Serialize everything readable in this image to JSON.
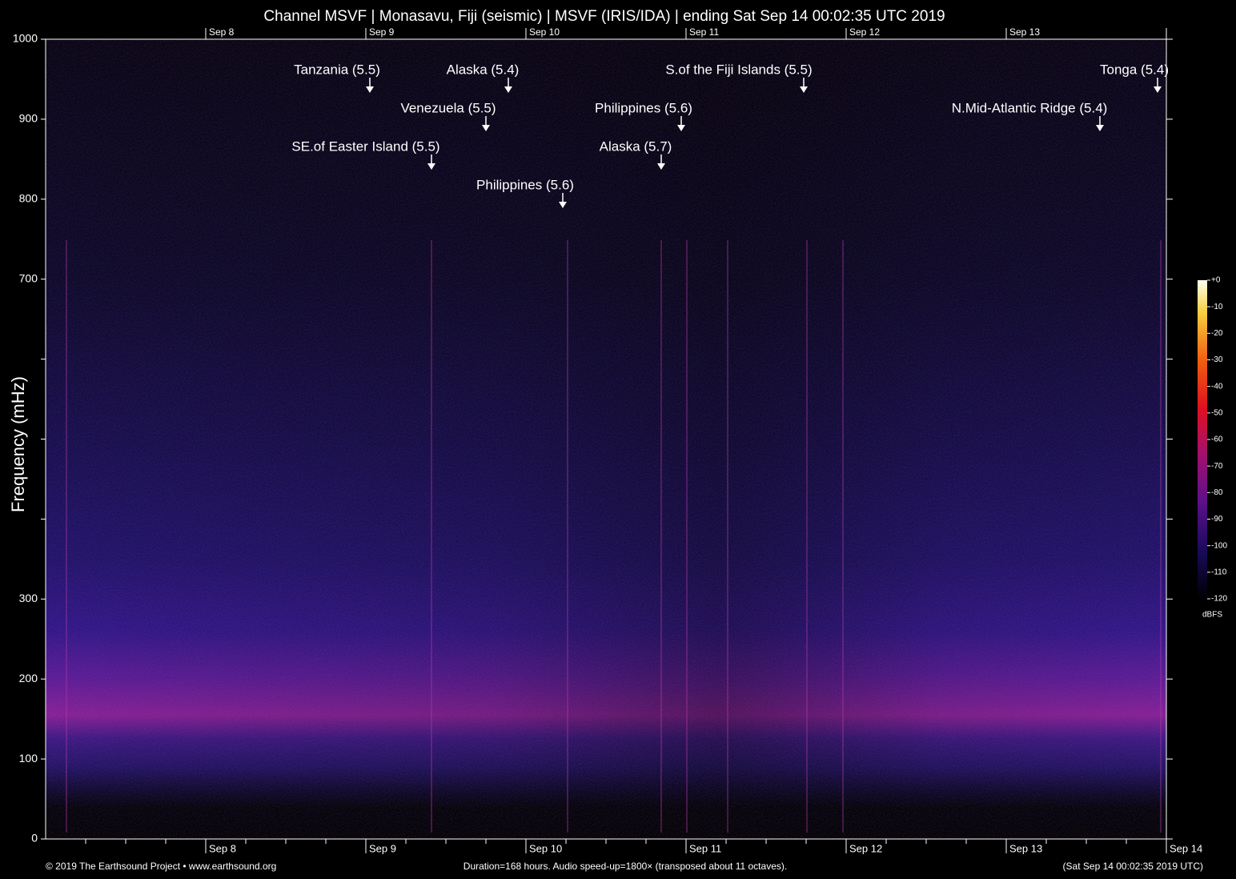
{
  "chart_data": {
    "type": "spectrogram",
    "title": "Channel MSVF | Monasavu, Fiji (seismic) | MSVF (IRIS/IDA) | ending Sat Sep 14 00:02:35 UTC 2019",
    "y_label": "Frequency (mHz)",
    "ylim": [
      0,
      1000
    ],
    "yticks": [
      0,
      100,
      200,
      300,
      {
        "value": 400,
        "label": null
      },
      {
        "value": 500,
        "label": null
      },
      {
        "value": 600,
        "label": null
      },
      700,
      800,
      900,
      1000
    ],
    "xticks": [
      "Sep 8",
      "Sep 9",
      "Sep 10",
      "Sep 11",
      "Sep 12",
      "Sep 13",
      "Sep 14"
    ],
    "annotations": [
      "Tanzania (5.5)",
      "Alaska (5.4)",
      "Venezuela (5.5)",
      "SE.of Easter Island (5.5)",
      "Philippines (5.6)",
      "Philippines (5.6)",
      "Alaska (5.7)",
      "S.of the Fiji Islands (5.5)",
      "N.Mid-Atlantic Ridge (5.4)",
      "Tonga (5.4)"
    ],
    "colorbar": {
      "label": "dBFS",
      "clim": [
        -120,
        0
      ],
      "ticks": [
        {
          "value": 0,
          "label": "+0"
        },
        -10,
        -20,
        -30,
        -40,
        -50,
        -60,
        -70,
        -80,
        -90,
        -100,
        -110,
        -120
      ]
    },
    "footer": {
      "left": "© 2019 The Earthsound Project • www.earthsound.org",
      "center": "Duration=168 hours. Audio speed-up=1800× (transposed about 11 octaves).",
      "right": "(Sat Sep 14 00:02:35 2019 UTC)"
    }
  }
}
